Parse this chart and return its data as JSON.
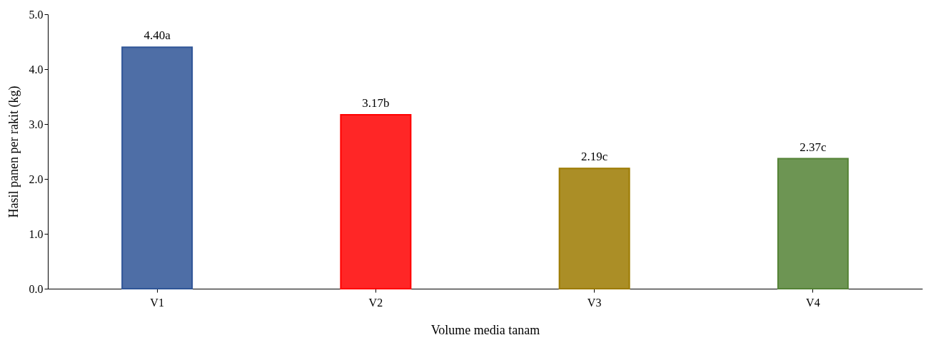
{
  "chart_data": {
    "type": "bar",
    "xlabel": "Volume media tanam",
    "ylabel": "Hasil panen per rakit (kg)",
    "categories": [
      "V1",
      "V2",
      "V3",
      "V4"
    ],
    "values": [
      4.4,
      3.17,
      2.19,
      2.37
    ],
    "colors": [
      "#2f5597",
      "#ff0000",
      "#9c7a00",
      "#548235"
    ],
    "value_labels": [
      "4.40a",
      "3.17b",
      "2.19c",
      "2.37c"
    ],
    "ylim": [
      0,
      5
    ],
    "yticks": [
      {
        "value": 0,
        "label": "0.0"
      },
      {
        "value": 1,
        "label": "1.0"
      },
      {
        "value": 2,
        "label": "2.0"
      },
      {
        "value": 3,
        "label": "3.0"
      },
      {
        "value": 4,
        "label": "4.0"
      },
      {
        "value": 5,
        "label": "5.0"
      }
    ],
    "grid": false
  }
}
